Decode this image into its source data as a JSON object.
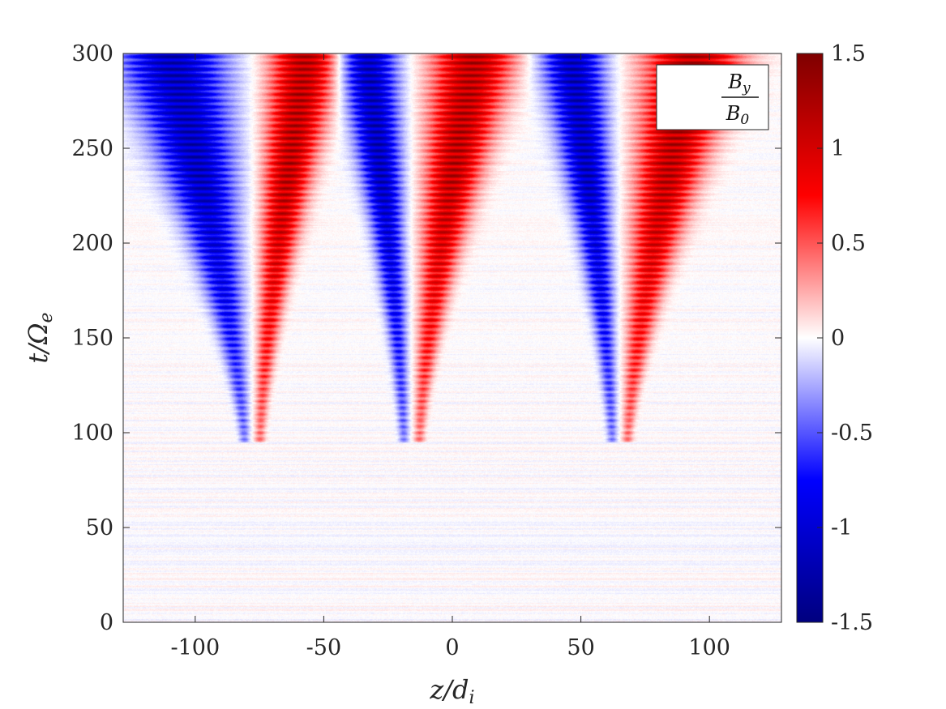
{
  "chart_data": {
    "type": "heatmap",
    "title": "",
    "xlabel": "z/d",
    "xlabel_sub": "i",
    "ylabel": "t/Ω",
    "ylabel_sub": "e",
    "xlim": [
      -128,
      128
    ],
    "ylim": [
      0,
      300
    ],
    "xticks": [
      -100,
      -50,
      0,
      50,
      100
    ],
    "xtick_labels": [
      "-100",
      "-50",
      "0",
      "50",
      "100"
    ],
    "yticks": [
      0,
      50,
      100,
      150,
      200,
      250,
      300
    ],
    "ytick_labels": [
      "0",
      "50",
      "100",
      "150",
      "200",
      "250",
      "300"
    ],
    "colorbar": {
      "range": [
        -1.5,
        1.5
      ],
      "ticks": [
        -1.5,
        -1,
        -0.5,
        0,
        0.5,
        1,
        1.5
      ],
      "tick_labels": [
        "-1.5",
        "-1",
        "-0.5",
        "0",
        "0.5",
        "1",
        "1.5"
      ],
      "colormap": [
        "#00007f",
        "#0000ff",
        "#ffffff",
        "#ff0000",
        "#7f0000"
      ]
    },
    "legend": {
      "numerator": "B",
      "numerator_sub": "y",
      "denominator": "B",
      "denominator_sub": "0",
      "placement": "top-right"
    },
    "structures": [
      {
        "z0": -78,
        "t_start": 95,
        "t_end": 295,
        "neg_spread": 40,
        "pos_spread": 25
      },
      {
        "z0": -16,
        "t_start": 95,
        "t_end": 295,
        "neg_spread": 20,
        "pos_spread": 30
      },
      {
        "z0": 65,
        "t_start": 95,
        "t_end": 295,
        "neg_spread": 22,
        "pos_spread": 36
      }
    ],
    "grid": false
  }
}
